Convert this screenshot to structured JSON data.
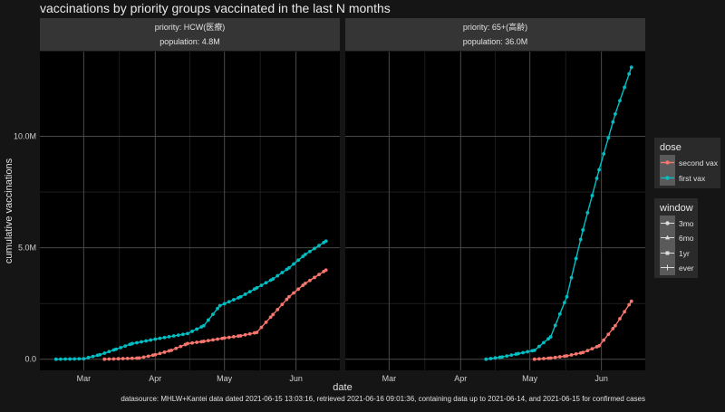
{
  "chart_data": {
    "type": "line",
    "title": "vaccinations by priority groups vaccinated in the last N months",
    "xlabel": "date",
    "ylabel": "cumulative vaccinations",
    "caption": "datasource: MHLW+Kantei data dated 2021-06-15 13:03:16, retrieved 2021-06-16 09:01:36, containing data up to 2021-06-14, and 2021-06-15 for confirmed cases",
    "x_ticks": [
      "Mar",
      "Apr",
      "May",
      "Jun"
    ],
    "x_tick_dates": [
      "2021-03-01",
      "2021-04-01",
      "2021-05-01",
      "2021-06-01"
    ],
    "xlim": [
      "2021-02-10",
      "2021-06-20"
    ],
    "y_ticks": [
      "0.0",
      "5.0M",
      "10.0M"
    ],
    "y_tick_values": [
      0,
      5000000,
      10000000
    ],
    "ylim": [
      -500000,
      13800000
    ],
    "colors": {
      "second vax": "#F8766D",
      "first vax": "#00BFC4"
    },
    "legend": {
      "position": "right",
      "dose": {
        "title": "dose",
        "items": [
          "second vax",
          "first vax"
        ]
      },
      "window": {
        "title": "window",
        "items": [
          "3mo",
          "6mo",
          "1yr",
          "ever"
        ]
      }
    },
    "panels": [
      {
        "strip_line1": "priority: HCW(医療)",
        "strip_line2": "population: 4.8M",
        "series": [
          {
            "name": "first vax",
            "points": [
              [
                "2021-02-17",
                0
              ],
              [
                "2021-03-01",
                20000
              ],
              [
                "2021-03-08",
                200000
              ],
              [
                "2021-03-15",
                450000
              ],
              [
                "2021-03-22",
                700000
              ],
              [
                "2021-04-01",
                900000
              ],
              [
                "2021-04-15",
                1150000
              ],
              [
                "2021-04-22",
                1500000
              ],
              [
                "2021-04-29",
                2400000
              ],
              [
                "2021-05-08",
                2800000
              ],
              [
                "2021-05-15",
                3200000
              ],
              [
                "2021-05-22",
                3600000
              ],
              [
                "2021-05-29",
                4100000
              ],
              [
                "2021-06-05",
                4700000
              ],
              [
                "2021-06-14",
                5300000
              ]
            ]
          },
          {
            "name": "second vax",
            "points": [
              [
                "2021-03-10",
                0
              ],
              [
                "2021-03-25",
                50000
              ],
              [
                "2021-04-01",
                200000
              ],
              [
                "2021-04-08",
                400000
              ],
              [
                "2021-04-15",
                700000
              ],
              [
                "2021-04-22",
                800000
              ],
              [
                "2021-05-01",
                950000
              ],
              [
                "2021-05-08",
                1050000
              ],
              [
                "2021-05-15",
                1200000
              ],
              [
                "2021-05-22",
                2000000
              ],
              [
                "2021-05-29",
                2800000
              ],
              [
                "2021-06-05",
                3400000
              ],
              [
                "2021-06-14",
                4000000
              ]
            ]
          }
        ]
      },
      {
        "strip_line1": "priority: 65+(高齢)",
        "strip_line2": "population: 36.0M",
        "series": [
          {
            "name": "first vax",
            "points": [
              [
                "2021-04-12",
                0
              ],
              [
                "2021-04-19",
                100000
              ],
              [
                "2021-04-26",
                250000
              ],
              [
                "2021-05-03",
                400000
              ],
              [
                "2021-05-10",
                1000000
              ],
              [
                "2021-05-17",
                2800000
              ],
              [
                "2021-05-24",
                5800000
              ],
              [
                "2021-05-31",
                8500000
              ],
              [
                "2021-06-07",
                11000000
              ],
              [
                "2021-06-14",
                13100000
              ]
            ]
          },
          {
            "name": "second vax",
            "points": [
              [
                "2021-05-03",
                0
              ],
              [
                "2021-05-10",
                50000
              ],
              [
                "2021-05-17",
                150000
              ],
              [
                "2021-05-24",
                300000
              ],
              [
                "2021-05-31",
                600000
              ],
              [
                "2021-06-07",
                1500000
              ],
              [
                "2021-06-14",
                2600000
              ]
            ]
          }
        ]
      }
    ]
  }
}
